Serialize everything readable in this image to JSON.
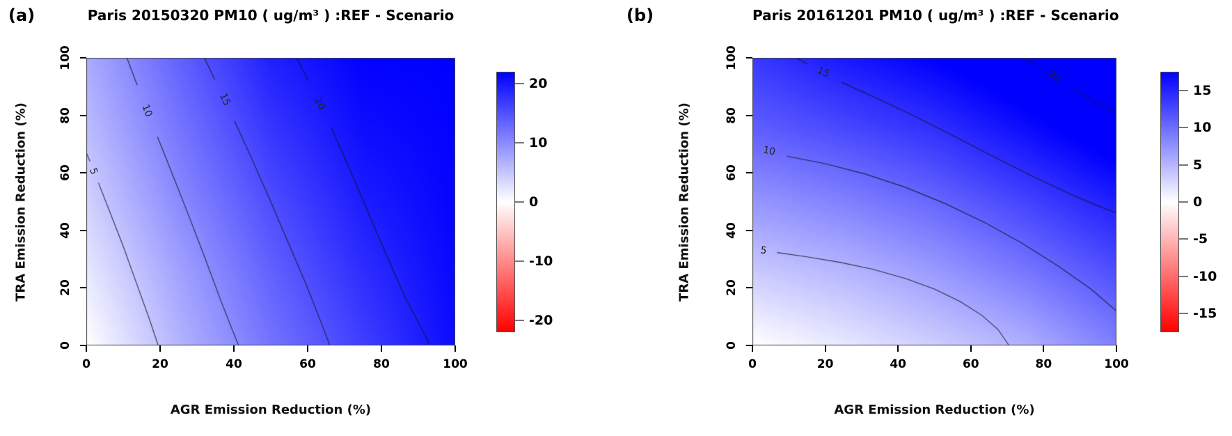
{
  "figure": {
    "background": "#ffffff"
  },
  "chart_data": [
    {
      "type": "filled-contour",
      "panel_label": "(a)",
      "title": "Paris 20150320 PM10 ( ug/m³ ) :REF - Scenario",
      "xlabel": "AGR Emission Reduction (%)",
      "ylabel": "TRA Emission Reduction (%)",
      "xlim": [
        0,
        100
      ],
      "ylim": [
        0,
        100
      ],
      "x_ticks": [
        0,
        20,
        40,
        60,
        80,
        100
      ],
      "y_ticks": [
        0,
        20,
        40,
        60,
        80,
        100
      ],
      "colorbar": {
        "ticks": [
          20,
          10,
          0,
          -10,
          -20
        ],
        "range": [
          -22,
          22
        ],
        "color_positive": "#0000ff",
        "color_zero": "#ffffff",
        "color_negative": "#ff0000"
      },
      "surface_grid": {
        "x": [
          0,
          25,
          50,
          75,
          100
        ],
        "y": [
          0,
          25,
          50,
          75,
          100
        ],
        "z": [
          [
            0.0,
            6.5,
            12.0,
            16.5,
            21.0
          ],
          [
            2.0,
            8.0,
            13.5,
            18.0,
            21.3
          ],
          [
            4.0,
            10.0,
            15.3,
            19.5,
            21.6
          ],
          [
            5.8,
            11.8,
            17.3,
            20.8,
            21.8
          ],
          [
            7.3,
            13.5,
            19.2,
            21.8,
            22.0
          ]
        ]
      },
      "contours": [
        {
          "level": 5,
          "label": "5",
          "label_pos": [
            1.9,
            60.5
          ],
          "label_rotation": 72,
          "segments": [
            [
              [
                0,
                67
              ],
              [
                1,
                64
              ]
            ],
            [
              [
                3.3,
                56.5
              ],
              [
                6.5,
                46
              ],
              [
                10,
                34.5
              ],
              [
                13.5,
                22
              ],
              [
                17,
                9.5
              ],
              [
                19.5,
                0
              ]
            ]
          ]
        },
        {
          "level": 10,
          "label": "10",
          "label_pos": [
            16.5,
            81.5
          ],
          "label_rotation": 70,
          "segments": [
            [
              [
                11,
                100
              ],
              [
                13.8,
                90.5
              ]
            ],
            [
              [
                19.3,
                72.5
              ],
              [
                23.5,
                59
              ],
              [
                27.8,
                45
              ],
              [
                32,
                31
              ],
              [
                36.2,
                16.5
              ],
              [
                39.7,
                5
              ],
              [
                41.3,
                0
              ]
            ]
          ]
        },
        {
          "level": 15,
          "label": "15",
          "label_pos": [
            37.5,
            85.5
          ],
          "label_rotation": 66,
          "segments": [
            [
              [
                32,
                100
              ],
              [
                34.8,
                92.5
              ]
            ],
            [
              [
                40.2,
                78
              ],
              [
                45,
                64.5
              ],
              [
                50,
                50
              ],
              [
                55,
                35
              ],
              [
                59.5,
                21.5
              ],
              [
                63.5,
                8.5
              ],
              [
                66,
                0
              ]
            ]
          ]
        },
        {
          "level": 20,
          "label": "20",
          "label_pos": [
            63.3,
            84
          ],
          "label_rotation": 60,
          "segments": [
            [
              [
                57,
                100
              ],
              [
                60.2,
                92
              ]
            ],
            [
              [
                66.5,
                75.5
              ],
              [
                71.5,
                61
              ],
              [
                76.5,
                46
              ],
              [
                81.5,
                31
              ],
              [
                86.5,
                16.5
              ],
              [
                91.5,
                4.5
              ],
              [
                93.2,
                0
              ]
            ]
          ]
        }
      ]
    },
    {
      "type": "filled-contour",
      "panel_label": "(b)",
      "title": "Paris 20161201 PM10 ( ug/m³ ) :REF - Scenario",
      "xlabel": "AGR Emission Reduction (%)",
      "ylabel": "TRA Emission Reduction (%)",
      "xlim": [
        0,
        100
      ],
      "ylim": [
        0,
        100
      ],
      "x_ticks": [
        0,
        20,
        40,
        60,
        80,
        100
      ],
      "y_ticks": [
        0,
        20,
        40,
        60,
        80,
        100
      ],
      "colorbar": {
        "ticks": [
          15,
          10,
          5,
          0,
          -5,
          -10,
          -15
        ],
        "range": [
          -17.5,
          17.5
        ],
        "color_positive": "#0000ff",
        "color_zero": "#ffffff",
        "color_negative": "#ff0000"
      },
      "surface_grid": {
        "x": [
          0,
          25,
          50,
          75,
          100
        ],
        "y": [
          0,
          25,
          50,
          75,
          100
        ],
        "z": [
          [
            0.0,
            1.6,
            3.4,
            5.4,
            8.7
          ],
          [
            3.6,
            4.9,
            6.8,
            9.2,
            12.0
          ],
          [
            7.2,
            8.6,
            10.4,
            12.8,
            15.4
          ],
          [
            10.9,
            12.4,
            14.1,
            16.5,
            19.0
          ],
          [
            13.6,
            15.8,
            17.5,
            19.6,
            21.4
          ]
        ]
      },
      "contours": [
        {
          "level": 5,
          "label": "5",
          "label_pos": [
            3,
            33
          ],
          "label_rotation": 10,
          "segments": [
            [
              [
                6.8,
                32.3
              ],
              [
                15,
                30.8
              ],
              [
                24,
                28.9
              ],
              [
                33,
                26.5
              ],
              [
                42,
                23.3
              ],
              [
                50,
                19.6
              ],
              [
                57,
                15.3
              ],
              [
                63,
                10.5
              ],
              [
                67.5,
                5.5
              ],
              [
                70.5,
                0
              ]
            ]
          ]
        },
        {
          "level": 10,
          "label": "10",
          "label_pos": [
            4.5,
            67.5
          ],
          "label_rotation": 12,
          "segments": [
            [
              [
                9.5,
                65.8
              ],
              [
                20,
                63.2
              ],
              [
                31,
                59.6
              ],
              [
                42,
                55
              ],
              [
                53,
                49.3
              ],
              [
                64,
                42.6
              ],
              [
                74,
                35.6
              ],
              [
                84,
                27.6
              ],
              [
                93,
                19.6
              ],
              [
                100,
                12
              ]
            ]
          ]
        },
        {
          "level": 15,
          "label": "15",
          "label_pos": [
            19.5,
            94.8
          ],
          "label_rotation": 24,
          "segments": [
            [
              [
                12,
                100
              ],
              [
                15,
                98
              ]
            ],
            [
              [
                24.5,
                91.5
              ],
              [
                34,
                86
              ],
              [
                44,
                80
              ],
              [
                55,
                73
              ],
              [
                66,
                65.8
              ],
              [
                77,
                58.8
              ],
              [
                87,
                52.8
              ],
              [
                94,
                49
              ],
              [
                100,
                46
              ]
            ]
          ]
        },
        {
          "level": 20,
          "label": "20",
          "label_pos": [
            83,
            93.5
          ],
          "label_rotation": 38,
          "segments": [
            [
              [
                74,
                100
              ],
              [
                77.8,
                97.6
              ]
            ],
            [
              [
                88,
                89.5
              ],
              [
                94,
                84.8
              ],
              [
                100,
                80.8
              ]
            ]
          ]
        }
      ]
    }
  ]
}
